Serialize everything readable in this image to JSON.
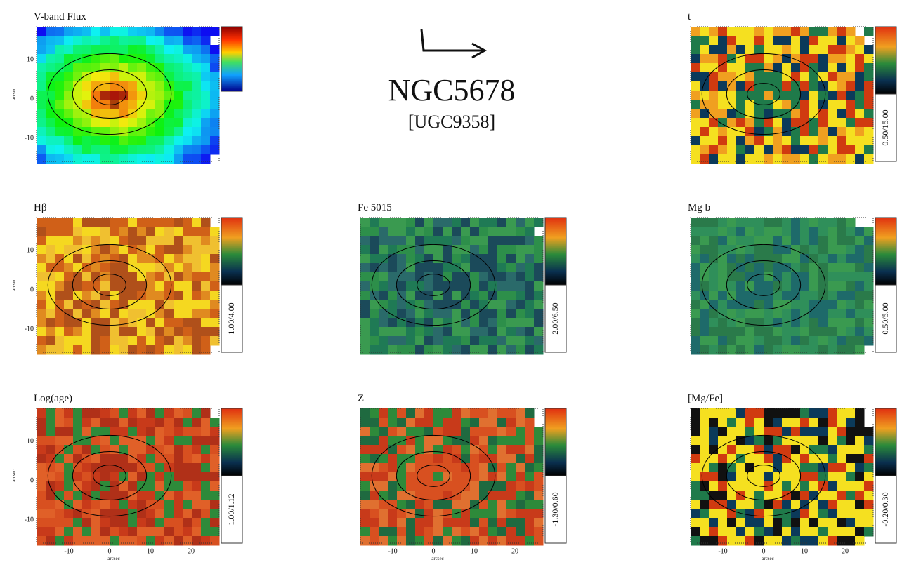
{
  "title": "NGC5678",
  "subtitle": "[UGC9358]",
  "axis_label": "arcsec",
  "yticks": [
    "10",
    "0",
    "-10"
  ],
  "xticks": [
    "-10",
    "0",
    "10",
    "20"
  ],
  "panels": [
    {
      "title": "V-band Flux"
    },
    {
      "title": "t",
      "range": "0.50/15.00"
    },
    {
      "title": "Hβ",
      "range": "1.00/4.00"
    },
    {
      "title": "Fe 5015",
      "range": "2.00/6.50"
    },
    {
      "title": "Mg b",
      "range": "0.50/5.00"
    },
    {
      "title": "Log(age)",
      "range": "1.00/1.12"
    },
    {
      "title": "Z",
      "range": "-1.30/0.60"
    },
    {
      "title": "[Mg/Fe]",
      "range": "-0.20/0.30"
    }
  ]
}
